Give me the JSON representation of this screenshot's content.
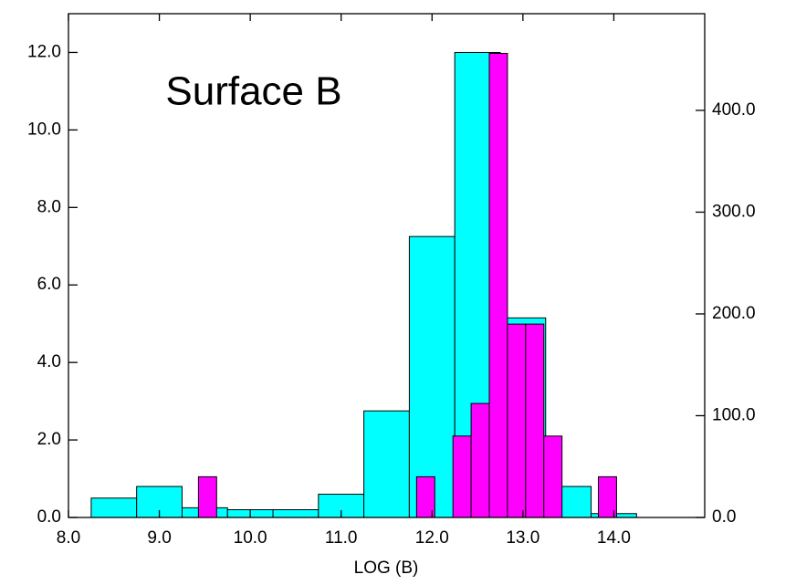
{
  "chart_data": {
    "type": "histogram",
    "annotation": "Surface B",
    "xlabel": "LOG (B)",
    "xlim": [
      8,
      15
    ],
    "xticks": [
      {
        "value": 8,
        "label": "8.0"
      },
      {
        "value": 9,
        "label": "9.0"
      },
      {
        "value": 10,
        "label": "10.0"
      },
      {
        "value": 11,
        "label": "11.0"
      },
      {
        "value": 12,
        "label": "12.0"
      },
      {
        "value": 13,
        "label": "13.0"
      },
      {
        "value": 14,
        "label": "14.0"
      }
    ],
    "ylim": [
      0,
      13
    ],
    "yticks": [
      {
        "value": 0,
        "label": "0.0"
      },
      {
        "value": 2,
        "label": "2.0"
      },
      {
        "value": 4,
        "label": "4.0"
      },
      {
        "value": 6,
        "label": "6.0"
      },
      {
        "value": 8,
        "label": "8.0"
      },
      {
        "value": 10,
        "label": "10.0"
      },
      {
        "value": 12,
        "label": "12.0"
      }
    ],
    "y2lim": [
      0,
      495
    ],
    "y2ticks": [
      {
        "value": 0,
        "label": "0.0"
      },
      {
        "value": 100,
        "label": "100.0"
      },
      {
        "value": 200,
        "label": "200.0"
      },
      {
        "value": 300,
        "label": "300.0"
      },
      {
        "value": 400,
        "label": "400.0"
      }
    ],
    "series": [
      {
        "color": "#00ffff",
        "bins": [
          8.25,
          8.75,
          9.25,
          9.75,
          10.25,
          10.75,
          11.25,
          11.75,
          12.25,
          12.75,
          13.25,
          13.75,
          14.25
        ],
        "values": [
          0.5,
          0.8,
          0.25,
          0.2,
          0.2,
          0.6,
          2.75,
          7.25,
          12.0,
          5.15,
          0.8,
          0.1
        ]
      },
      {
        "color": "#ff00ff",
        "axis": "y2",
        "bins": [
          9.43,
          9.63,
          9.83,
          10.03,
          10.23,
          10.43,
          10.63,
          10.83,
          11.03,
          11.23,
          11.43,
          11.63,
          11.83,
          12.03,
          12.23,
          12.43,
          12.63,
          12.83,
          13.03,
          13.23,
          13.43,
          13.63,
          13.83,
          14.03
        ],
        "values": [
          40,
          0,
          0,
          0,
          0,
          0,
          0,
          0,
          0,
          0,
          0,
          0,
          40,
          0,
          80,
          112,
          456,
          190,
          190,
          80,
          0,
          0,
          40
        ]
      }
    ]
  }
}
